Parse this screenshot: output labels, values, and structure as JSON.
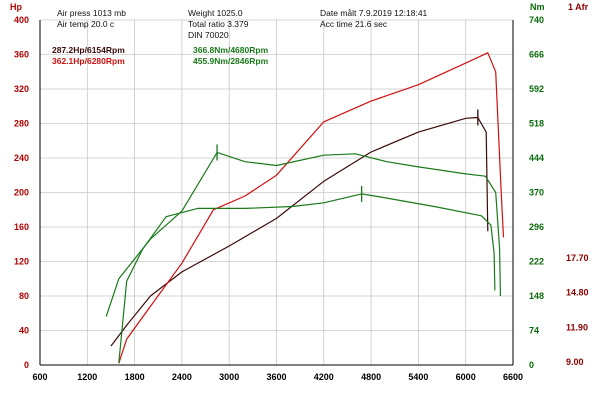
{
  "colors": {
    "power_axis": "#b00000",
    "torque_axis": "#0a6a0a",
    "afr_axis": "#8b0000",
    "grid": "#c8c8c8",
    "power_stock": "#3a0a0a",
    "power_tuned": "#d01010",
    "torque": "#1a7a1a"
  },
  "header": {
    "air_press": "Air press  1013 mb",
    "air_temp": "Air temp  20.0 c",
    "weight": "Weight  1025.0",
    "total_ratio": "Total ratio 3.379",
    "din": "DIN 70020",
    "date": "Date målt 7.9.2019 12:18:41",
    "acc_time": "Acc time  21.6 sec"
  },
  "axis_titles": {
    "left": "Hp",
    "right": "Nm",
    "afr": "1 Afr"
  },
  "readouts": {
    "power_stock": "287.2Hp/6154Rpm",
    "power_tuned": "362.1Hp/6280Rpm",
    "torque_stock": "366.8Nm/4680Rpm",
    "torque_tuned": "455.9Nm/2846Rpm"
  },
  "chart_data": {
    "type": "line",
    "x_axis": {
      "min": 600,
      "max": 6600,
      "ticks": [
        600,
        1200,
        1800,
        2400,
        3000,
        3600,
        4200,
        4800,
        5400,
        6000,
        6600
      ]
    },
    "y_left": {
      "unit": "Hp",
      "min": 0,
      "max": 400,
      "ticks": [
        0,
        40,
        80,
        120,
        160,
        200,
        240,
        280,
        320,
        360,
        400
      ]
    },
    "y_right": {
      "unit": "Nm",
      "min": 0,
      "max": 740,
      "ticks": [
        0,
        74,
        148,
        222,
        296,
        370,
        444,
        518,
        592,
        666,
        740
      ]
    },
    "y_afr": {
      "unit": "Afr",
      "ticks": [
        9.0,
        11.9,
        14.8,
        17.7
      ]
    },
    "grid": true,
    "series": [
      {
        "axis": "left",
        "color_key": "power_stock",
        "points": [
          [
            1500,
            22
          ],
          [
            1700,
            46
          ],
          [
            2000,
            80
          ],
          [
            2400,
            108
          ],
          [
            3000,
            138
          ],
          [
            3600,
            170
          ],
          [
            4200,
            213
          ],
          [
            4800,
            247
          ],
          [
            5400,
            270
          ],
          [
            6000,
            286
          ],
          [
            6154,
            287
          ],
          [
            6260,
            270
          ],
          [
            6280,
            155
          ]
        ]
      },
      {
        "axis": "left",
        "color_key": "power_tuned",
        "points": [
          [
            1600,
            2
          ],
          [
            1700,
            30
          ],
          [
            2000,
            68
          ],
          [
            2400,
            118
          ],
          [
            2800,
            180
          ],
          [
            3200,
            196
          ],
          [
            3600,
            220
          ],
          [
            4200,
            282
          ],
          [
            4800,
            306
          ],
          [
            5400,
            325
          ],
          [
            6000,
            350
          ],
          [
            6280,
            362
          ],
          [
            6380,
            340
          ],
          [
            6450,
            200
          ],
          [
            6480,
            148
          ]
        ]
      },
      {
        "axis": "right",
        "color_key": "torque",
        "points": [
          [
            1440,
            104
          ],
          [
            1600,
            185
          ],
          [
            2000,
            270
          ],
          [
            2400,
            330
          ],
          [
            2846,
            456
          ],
          [
            3200,
            436
          ],
          [
            3600,
            428
          ],
          [
            4200,
            450
          ],
          [
            4600,
            453
          ],
          [
            5000,
            436
          ],
          [
            5400,
            425
          ],
          [
            6000,
            410
          ],
          [
            6250,
            405
          ],
          [
            6380,
            370
          ],
          [
            6430,
            250
          ],
          [
            6440,
            148
          ]
        ]
      },
      {
        "axis": "right",
        "color_key": "torque",
        "points": [
          [
            1600,
            4
          ],
          [
            1700,
            180
          ],
          [
            1900,
            248
          ],
          [
            2200,
            318
          ],
          [
            2600,
            336
          ],
          [
            3200,
            336
          ],
          [
            3800,
            340
          ],
          [
            4200,
            348
          ],
          [
            4680,
            367
          ],
          [
            5000,
            358
          ],
          [
            5600,
            340
          ],
          [
            6200,
            320
          ],
          [
            6320,
            300
          ],
          [
            6360,
            240
          ],
          [
            6370,
            160
          ]
        ]
      }
    ],
    "peak_markers": [
      {
        "axis": "left",
        "x": 6154,
        "y": 287,
        "color_key": "power_stock"
      },
      {
        "axis": "right",
        "x": 2846,
        "y": 456,
        "color_key": "torque"
      },
      {
        "axis": "right",
        "x": 4680,
        "y": 367,
        "color_key": "torque"
      }
    ]
  }
}
